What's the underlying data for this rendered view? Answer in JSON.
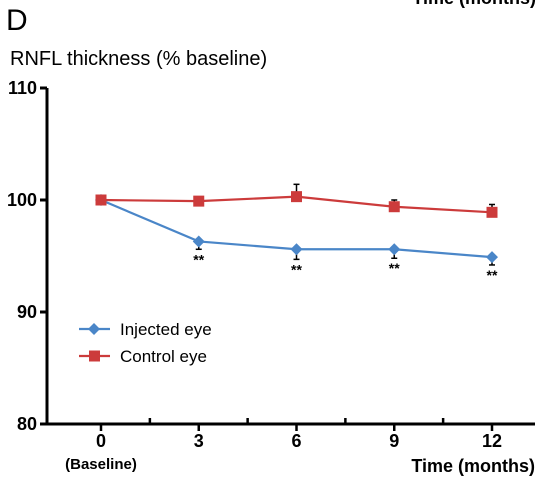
{
  "panel_label": "D",
  "top_cut_text": "Time (months)",
  "chart_data": {
    "type": "line",
    "title": "",
    "ylabel": "RNFL thickness (% baseline)",
    "xlabel": "Time (months)",
    "x": [
      0,
      3,
      6,
      9,
      12
    ],
    "x_tick_labels": [
      "0",
      "3",
      "6",
      "9",
      "12"
    ],
    "x_sublabel": "(Baseline)",
    "ylim": [
      80,
      110
    ],
    "y_ticks": [
      80,
      90,
      100,
      110
    ],
    "grid": false,
    "legend_position": "lower-left",
    "series": [
      {
        "name": "Injected eye",
        "color": "#4a86c8",
        "marker": "diamond",
        "values": [
          100,
          96.3,
          95.6,
          95.6,
          94.9
        ],
        "error": [
          0,
          0.7,
          0.9,
          0.8,
          0.7
        ],
        "significance": [
          "",
          "**",
          "**",
          "**",
          "**"
        ]
      },
      {
        "name": "Control eye",
        "color": "#cc3b3b",
        "marker": "square",
        "values": [
          100,
          99.9,
          100.3,
          99.4,
          98.9
        ],
        "error": [
          0,
          0,
          1.1,
          0.6,
          0.7
        ],
        "significance": [
          "",
          "",
          "",
          "",
          ""
        ]
      }
    ]
  }
}
